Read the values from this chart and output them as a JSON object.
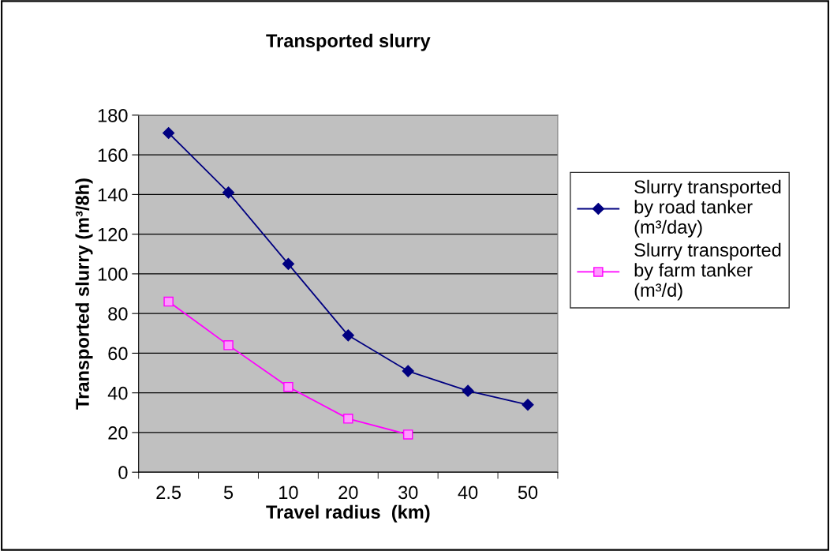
{
  "chart_data": {
    "type": "line",
    "title": "Transported slurry",
    "xlabel": "Travel radius  (km)",
    "ylabel": "Transported slurry (m³/8h)",
    "categories": [
      "2.5",
      "5",
      "10",
      "20",
      "30",
      "40",
      "50"
    ],
    "series": [
      {
        "name": "Slurry transported by road tanker (m³/day)",
        "color": "#000080",
        "marker": "diamond",
        "values": [
          171,
          141,
          105,
          69,
          51,
          41,
          34
        ]
      },
      {
        "name": "Slurry transported by farm tanker (m³/d)",
        "color": "#ff00ff",
        "marker": "square",
        "values": [
          86,
          64,
          43,
          27,
          19,
          null,
          null
        ]
      }
    ],
    "ylim": [
      0,
      180
    ],
    "yticks": [
      0,
      20,
      40,
      60,
      80,
      100,
      120,
      140,
      160,
      180
    ],
    "grid": "y",
    "legend": "right",
    "line_style": "solid"
  }
}
